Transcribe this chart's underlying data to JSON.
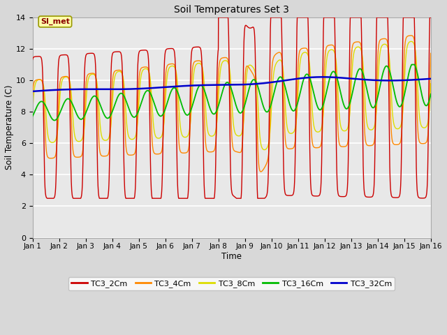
{
  "title": "Soil Temperatures Set 3",
  "xlabel": "Time",
  "ylabel": "Soil Temperature (C)",
  "ylim": [
    0,
    14
  ],
  "yticks": [
    0,
    2,
    4,
    6,
    8,
    10,
    12,
    14
  ],
  "xlim": [
    0,
    15
  ],
  "xtick_labels": [
    "Jan 1",
    "Jan 2",
    "Jan 3",
    "Jan 4",
    "Jan 5",
    "Jan 6",
    "Jan 7",
    "Jan 8",
    "Jan 9",
    "Jan 10",
    "Jan 11",
    "Jan 12",
    "Jan 13",
    "Jan 14",
    "Jan 15",
    "Jan 16"
  ],
  "annotation_text": "SI_met",
  "colors": {
    "TC3_2Cm": "#cc0000",
    "TC3_4Cm": "#ff8800",
    "TC3_8Cm": "#dddd00",
    "TC3_16Cm": "#00bb00",
    "TC3_32Cm": "#0000cc"
  },
  "legend_labels": [
    "TC3_2Cm",
    "TC3_4Cm",
    "TC3_8Cm",
    "TC3_16Cm",
    "TC3_32Cm"
  ],
  "bg_color": "#d8d8d8",
  "plot_bg_color": "#e8e8e8"
}
